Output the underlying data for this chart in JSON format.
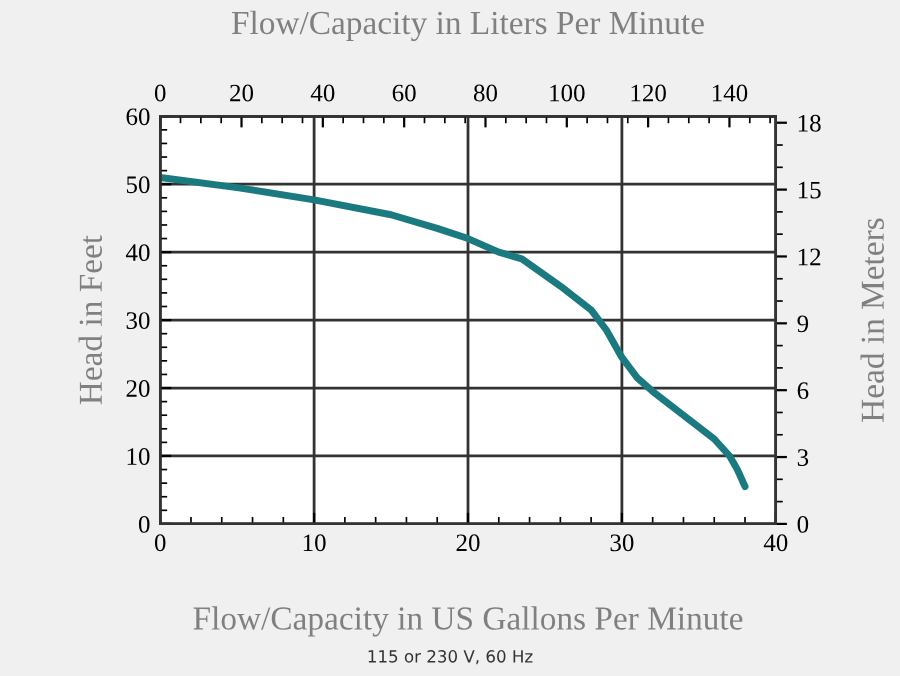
{
  "chart_data": {
    "type": "line",
    "xlabel": "Flow/Capacity in US Gallons Per Minute",
    "x2label": "Flow/Capacity in Liters Per Minute",
    "ylabel": "Head in Feet",
    "y2label": "Head in Meters",
    "annotations": [
      "115 or 230 V, 60 Hz"
    ],
    "series": [
      {
        "color": "#1b7a80",
        "x": [
          0,
          5,
          10,
          15,
          18,
          20,
          22,
          23.5,
          26,
          28,
          29,
          30,
          31,
          32,
          34,
          36,
          37,
          37.5,
          38
        ],
        "values": [
          51,
          49.5,
          47.7,
          45.5,
          43.5,
          42,
          40,
          39,
          35,
          31.5,
          28.5,
          24.5,
          21.5,
          19.5,
          16,
          12.5,
          10,
          8,
          5.5
        ]
      }
    ],
    "xlim": [
      0,
      40
    ],
    "xticks": [
      0,
      10,
      20,
      30,
      40
    ],
    "ylim": [
      0,
      60
    ],
    "yticks": [
      0,
      10,
      20,
      30,
      40,
      50,
      60
    ],
    "x2lim": [
      0,
      151.4
    ],
    "x2ticks": [
      0,
      20,
      40,
      60,
      80,
      100,
      120,
      140
    ],
    "y2lim": [
      0,
      18.29
    ],
    "y2ticks": [
      0,
      3,
      6,
      9,
      12,
      15,
      18
    ],
    "grid": true,
    "marker": "none",
    "line_style": "solid"
  }
}
